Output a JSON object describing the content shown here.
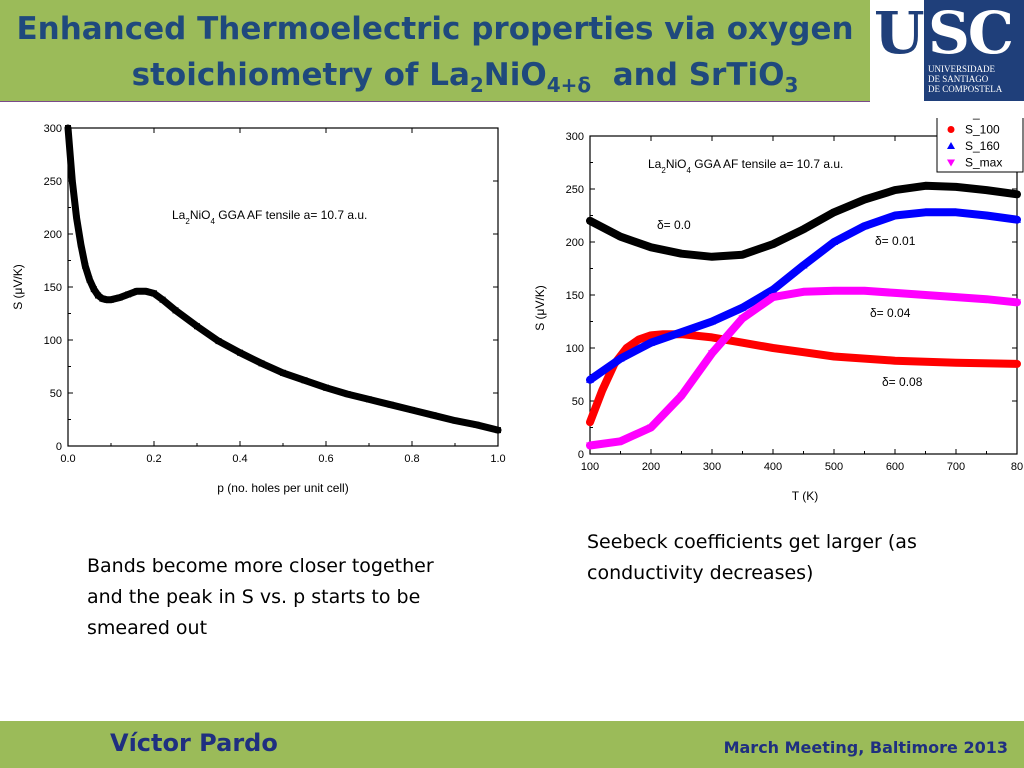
{
  "header": {
    "title_line1": "Enhanced Thermoelectric properties via oxygen",
    "title_line2_prefix": "stoichiometry of La",
    "title_sub1": "2",
    "title_mid1": "NiO",
    "title_sub2": "4+δ",
    "title_mid2": "  and SrTiO",
    "title_sub3": "3",
    "bg_color": "#9bbb59",
    "title_color": "#1f497d"
  },
  "logo": {
    "text": "USC",
    "line1": "UNIVERSIDADE",
    "line2": "DE SANTIAGO",
    "line3": "DE COMPOSTELA"
  },
  "notes": {
    "left": "Bands become more closer together and the peak in S vs. p starts to be smeared out",
    "right": "Seebeck coefficients get larger (as conductivity decreases)"
  },
  "footer": {
    "author": "Víctor Pardo",
    "event": "March Meeting, Baltimore 2013"
  },
  "chart_data": [
    {
      "type": "line",
      "xlabel": "p (no. holes per unit cell)",
      "ylabel": "S (μV/K)",
      "annotation": {
        "pre": "La",
        "sub1": "2",
        "mid": "NiO",
        "sub2": "4",
        "post": " GGA AF tensile a= 10.7 a.u."
      },
      "xlim": [
        0,
        1
      ],
      "ylim": [
        0,
        300
      ],
      "xticks": [
        "0.0",
        "0.2",
        "0.4",
        "0.6",
        "0.8",
        "1.0"
      ],
      "yticks": [
        "0",
        "50",
        "100",
        "150",
        "200",
        "250",
        "300"
      ],
      "series": [
        {
          "color": "#000000",
          "x": [
            0.0,
            0.01,
            0.02,
            0.03,
            0.04,
            0.05,
            0.06,
            0.07,
            0.08,
            0.09,
            0.1,
            0.12,
            0.14,
            0.16,
            0.18,
            0.2,
            0.22,
            0.25,
            0.3,
            0.35,
            0.4,
            0.45,
            0.5,
            0.55,
            0.6,
            0.65,
            0.7,
            0.75,
            0.8,
            0.85,
            0.9,
            0.95,
            1.0
          ],
          "y": [
            300,
            250,
            215,
            190,
            170,
            157,
            148,
            142,
            139,
            138,
            138,
            140,
            143,
            146,
            146,
            144,
            138,
            128,
            113,
            99,
            88,
            78,
            69,
            62,
            55,
            49,
            44,
            39,
            34,
            29,
            24,
            20,
            15
          ]
        }
      ]
    },
    {
      "type": "line",
      "xlabel": "T (K)",
      "ylabel": "S (μV/K)",
      "annotation": {
        "pre": "La",
        "sub1": "2",
        "mid": "NiO",
        "sub2": "4",
        "post": " GGA AF tensile a= 10.7 a.u."
      },
      "xlim": [
        100,
        800
      ],
      "ylim": [
        0,
        300
      ],
      "xticks": [
        "100",
        "200",
        "300",
        "400",
        "500",
        "600",
        "700",
        "80"
      ],
      "yticks": [
        "0",
        "50",
        "100",
        "150",
        "200",
        "250",
        "300"
      ],
      "legend_position": "top-right",
      "legend": [
        "S_EF",
        "S_100",
        "S_160",
        "S_max"
      ],
      "delta_labels": [
        "δ= 0.0",
        "δ= 0.01",
        "δ= 0.04",
        "δ= 0.08"
      ],
      "series": [
        {
          "name": "S_EF",
          "color": "#000000",
          "marker": "square",
          "delta": "δ= 0.0",
          "x": [
            100,
            150,
            200,
            250,
            300,
            350,
            400,
            450,
            500,
            550,
            600,
            650,
            700,
            750,
            800
          ],
          "y": [
            220,
            205,
            195,
            189,
            186,
            188,
            198,
            212,
            228,
            240,
            249,
            253,
            252,
            249,
            245
          ]
        },
        {
          "name": "S_100",
          "color": "#ff0000",
          "marker": "circle",
          "delta": "δ= 0.01",
          "x": [
            100,
            120,
            140,
            160,
            180,
            200,
            220,
            250,
            300,
            350,
            400,
            450,
            500,
            600,
            700,
            800
          ],
          "y": [
            30,
            60,
            85,
            100,
            108,
            112,
            113,
            113,
            110,
            105,
            100,
            96,
            92,
            88,
            86,
            85
          ]
        },
        {
          "name": "S_160",
          "color": "#0000ff",
          "marker": "triangle-up",
          "delta": "δ= 0.04",
          "x": [
            100,
            150,
            200,
            250,
            300,
            350,
            400,
            450,
            500,
            550,
            600,
            650,
            700,
            750,
            800
          ],
          "y": [
            70,
            90,
            105,
            115,
            125,
            138,
            155,
            178,
            200,
            215,
            225,
            228,
            228,
            225,
            221
          ]
        },
        {
          "name": "S_max",
          "color": "#ff00ff",
          "marker": "triangle-down",
          "delta": "δ= 0.08",
          "x": [
            100,
            150,
            200,
            250,
            300,
            350,
            400,
            450,
            500,
            550,
            600,
            650,
            700,
            750,
            800
          ],
          "y": [
            8,
            12,
            25,
            55,
            95,
            128,
            148,
            153,
            154,
            154,
            152,
            150,
            148,
            146,
            143
          ]
        }
      ]
    }
  ]
}
